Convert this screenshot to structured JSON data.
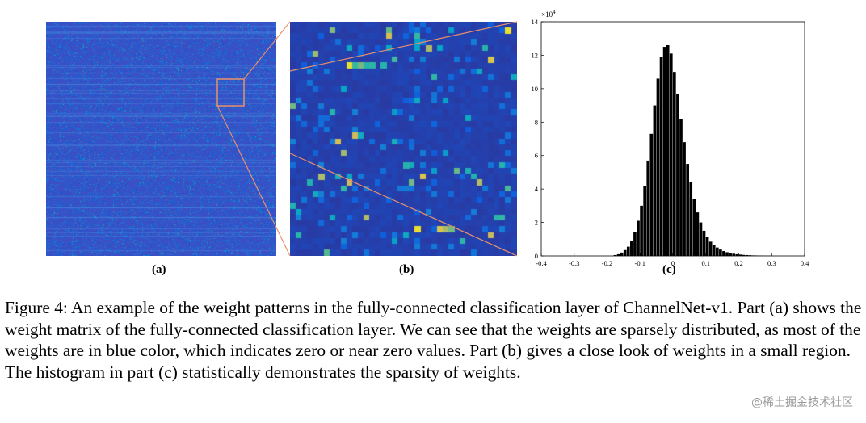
{
  "figure": {
    "labels": {
      "a": "(a)",
      "b": "(b)",
      "c": "(c)"
    },
    "caption": "Figure 4: An example of the weight patterns in the fully-connected classification layer of ChannelNet-v1. Part (a) shows the weight matrix of the fully-connected classification layer. We can see that the weights are sparsely distributed, as most of the weights are in blue color, which indicates zero or near zero values. Part (b) gives a close look of weights in a small region. The histogram in part (c) statistically demonstrates the sparsity of weights.",
    "watermark": "@稀土掘金技术社区",
    "colors": {
      "heatmap_base": "#3a4fc8",
      "zoom_lines": "#e8916a",
      "bars": "#000000"
    }
  },
  "chart_data": [
    {
      "type": "heatmap",
      "panel": "(a)",
      "description_values": "weight matrix, mostly near-zero (blue)"
    },
    {
      "type": "heatmap",
      "panel": "(b)",
      "description_values": "zoomed region of weight matrix"
    },
    {
      "type": "bar",
      "panel": "(c)",
      "x_ticks": [
        "-0.4",
        "-0.3",
        "-0.2",
        "-0.1",
        "0",
        "0.1",
        "0.2",
        "0.3",
        "0.4"
      ],
      "y_ticks": [
        "0",
        "2",
        "4",
        "6",
        "8",
        "10",
        "12",
        "14"
      ],
      "y_multiplier": "×10⁴",
      "xlim": [
        -0.4,
        0.4
      ],
      "ylim": [
        0,
        14
      ],
      "bin_width": 0.01,
      "x": [
        -0.175,
        -0.165,
        -0.155,
        -0.145,
        -0.135,
        -0.125,
        -0.115,
        -0.105,
        -0.095,
        -0.085,
        -0.075,
        -0.065,
        -0.055,
        -0.045,
        -0.035,
        -0.025,
        -0.015,
        -0.005,
        0.005,
        0.015,
        0.025,
        0.035,
        0.045,
        0.055,
        0.065,
        0.075,
        0.085,
        0.095,
        0.105,
        0.115,
        0.125,
        0.135,
        0.145,
        0.155,
        0.165,
        0.175,
        0.185,
        0.195,
        0.205,
        0.215,
        0.225,
        0.235,
        0.245,
        0.255,
        0.265,
        0.275,
        0.285,
        0.295
      ],
      "values": [
        0.05,
        0.1,
        0.2,
        0.35,
        0.55,
        0.9,
        1.4,
        2.1,
        3.0,
        4.2,
        5.7,
        7.3,
        9.0,
        10.6,
        11.9,
        12.5,
        12.6,
        12.1,
        11.0,
        9.7,
        8.2,
        6.8,
        5.5,
        4.4,
        3.4,
        2.6,
        2.0,
        1.5,
        1.15,
        0.85,
        0.65,
        0.5,
        0.38,
        0.29,
        0.22,
        0.17,
        0.13,
        0.1,
        0.08,
        0.06,
        0.05,
        0.04,
        0.03,
        0.025,
        0.02,
        0.015,
        0.01,
        0.008
      ]
    }
  ]
}
